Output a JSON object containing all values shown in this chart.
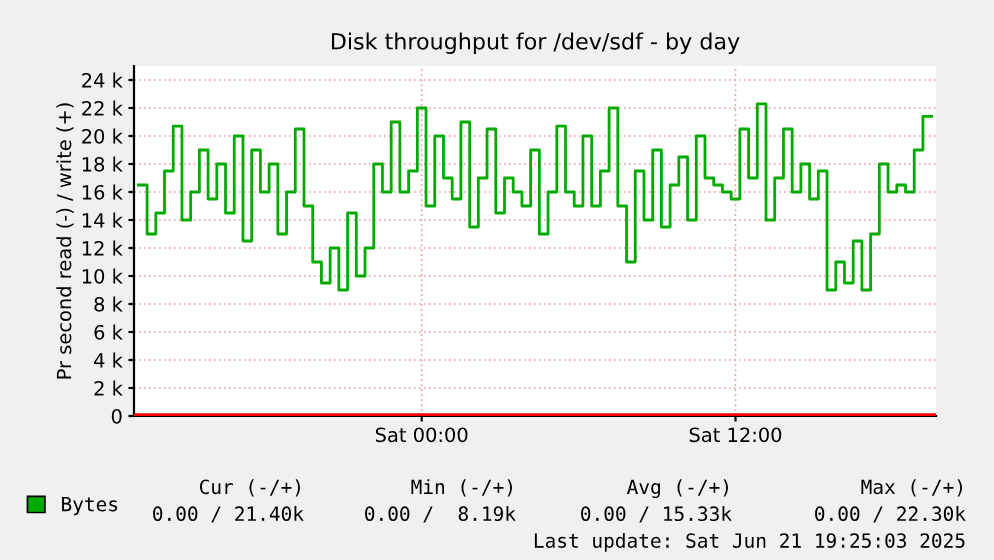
{
  "chart_data": {
    "type": "step",
    "title": "Disk throughput for /dev/sdf - by day",
    "ylabel": "Pr second read (-) / write (+)",
    "x": [
      "2025-06-20T13:10",
      "2025-06-20T13:30",
      "2025-06-20T13:50",
      "2025-06-20T14:10",
      "2025-06-20T14:30",
      "2025-06-20T14:50",
      "2025-06-20T15:10",
      "2025-06-20T15:30",
      "2025-06-20T15:50",
      "2025-06-20T16:10",
      "2025-06-20T16:30",
      "2025-06-20T16:50",
      "2025-06-20T17:10",
      "2025-06-20T17:30",
      "2025-06-20T17:50",
      "2025-06-20T18:10",
      "2025-06-20T18:30",
      "2025-06-20T18:50",
      "2025-06-20T19:10",
      "2025-06-20T19:30",
      "2025-06-20T19:50",
      "2025-06-20T20:10",
      "2025-06-20T20:30",
      "2025-06-20T20:50",
      "2025-06-20T21:10",
      "2025-06-20T21:30",
      "2025-06-20T21:50",
      "2025-06-20T22:10",
      "2025-06-20T22:30",
      "2025-06-20T22:50",
      "2025-06-20T23:10",
      "2025-06-20T23:30",
      "2025-06-20T23:50",
      "2025-06-21T00:10",
      "2025-06-21T00:30",
      "2025-06-21T00:50",
      "2025-06-21T01:10",
      "2025-06-21T01:30",
      "2025-06-21T01:50",
      "2025-06-21T02:10",
      "2025-06-21T02:30",
      "2025-06-21T02:50",
      "2025-06-21T03:10",
      "2025-06-21T03:30",
      "2025-06-21T03:50",
      "2025-06-21T04:10",
      "2025-06-21T04:30",
      "2025-06-21T04:50",
      "2025-06-21T05:10",
      "2025-06-21T05:30",
      "2025-06-21T05:50",
      "2025-06-21T06:10",
      "2025-06-21T06:30",
      "2025-06-21T06:50",
      "2025-06-21T07:10",
      "2025-06-21T07:30",
      "2025-06-21T07:50",
      "2025-06-21T08:10",
      "2025-06-21T08:30",
      "2025-06-21T08:50",
      "2025-06-21T09:10",
      "2025-06-21T09:30",
      "2025-06-21T09:50",
      "2025-06-21T10:10",
      "2025-06-21T10:30",
      "2025-06-21T10:50",
      "2025-06-21T11:10",
      "2025-06-21T11:30",
      "2025-06-21T11:50",
      "2025-06-21T12:10",
      "2025-06-21T12:30",
      "2025-06-21T12:50",
      "2025-06-21T13:10",
      "2025-06-21T13:30",
      "2025-06-21T13:50",
      "2025-06-21T14:10",
      "2025-06-21T14:30",
      "2025-06-21T14:50",
      "2025-06-21T15:10",
      "2025-06-21T15:30",
      "2025-06-21T15:50",
      "2025-06-21T16:10",
      "2025-06-21T16:30",
      "2025-06-21T16:50",
      "2025-06-21T17:10",
      "2025-06-21T17:30",
      "2025-06-21T17:50",
      "2025-06-21T18:10",
      "2025-06-21T18:30",
      "2025-06-21T18:50",
      "2025-06-21T19:10",
      "2025-06-21T19:30"
    ],
    "series": [
      {
        "name": "Bytes",
        "color": "#00aa00",
        "values": [
          16500,
          13000,
          14500,
          17500,
          20700,
          14000,
          16000,
          19000,
          15500,
          18000,
          14500,
          20000,
          12500,
          19000,
          16000,
          18000,
          13000,
          16000,
          20500,
          15000,
          11000,
          9500,
          12000,
          9000,
          14500,
          10000,
          12000,
          18000,
          16000,
          21000,
          16000,
          17500,
          22000,
          15000,
          20000,
          17000,
          15500,
          21000,
          13500,
          17000,
          20500,
          14500,
          17000,
          16000,
          15000,
          19000,
          13000,
          16000,
          20700,
          16000,
          15000,
          20000,
          15000,
          17500,
          22000,
          15000,
          11000,
          17500,
          14000,
          19000,
          13500,
          16500,
          18500,
          14000,
          20000,
          17000,
          16500,
          16000,
          15500,
          20500,
          17000,
          22300,
          14000,
          17000,
          20500,
          16000,
          18000,
          15500,
          17500,
          9000,
          11000,
          9500,
          12500,
          9000,
          13000,
          18000,
          16000,
          16500,
          16000,
          19000,
          21400,
          21400
        ]
      }
    ],
    "xlim": [
      "2025-06-20T13:00",
      "2025-06-21T19:40"
    ],
    "xticks": [
      {
        "value": "2025-06-21T00:00",
        "label": "Sat 00:00"
      },
      {
        "value": "2025-06-21T12:00",
        "label": "Sat 12:00"
      }
    ],
    "ylim": [
      0,
      25000
    ],
    "yticks": [
      0,
      {
        "value": 2000,
        "label": "2 k"
      },
      {
        "value": 4000,
        "label": "4 k"
      },
      {
        "value": 6000,
        "label": "6 k"
      },
      {
        "value": 8000,
        "label": "8 k"
      },
      {
        "value": 10000,
        "label": "10 k"
      },
      {
        "value": 12000,
        "label": "12 k"
      },
      {
        "value": 14000,
        "label": "14 k"
      },
      {
        "value": 16000,
        "label": "16 k"
      },
      {
        "value": 18000,
        "label": "18 k"
      },
      {
        "value": 20000,
        "label": "20 k"
      },
      {
        "value": 22000,
        "label": "22 k"
      },
      {
        "value": 24000,
        "label": "24 k"
      }
    ],
    "ref_lines": [
      {
        "axis": "y",
        "value": 0,
        "color": "#ff0000"
      }
    ],
    "grid": true,
    "legend": "bottom",
    "annotations": [
      "Cur (-/+)",
      "0.00 / 21.40k",
      "Min (-/+)",
      "0.00 /  8.19k",
      "Avg (-/+)",
      "0.00 / 15.33k",
      "Max (-/+)",
      "0.00 / 22.30k",
      "Last update: Sat Jun 21 19:25:03 2025"
    ]
  }
}
